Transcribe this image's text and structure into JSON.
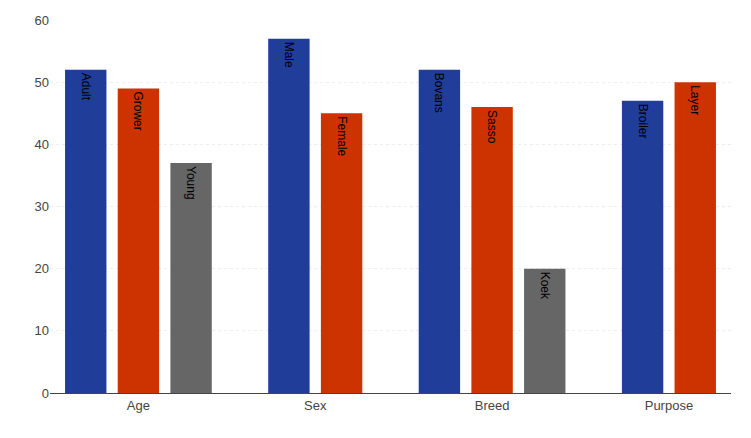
{
  "chart_data": {
    "type": "bar",
    "categories": [
      "Age",
      "Sex",
      "Breed",
      "Purpose"
    ],
    "series": [
      {
        "color": "#1f3d99",
        "values": [
          52,
          57,
          52,
          47
        ],
        "labels": [
          "Adult",
          "Male",
          "Bovans",
          "Broiler"
        ]
      },
      {
        "color": "#cc3300",
        "values": [
          49,
          45,
          46,
          50
        ],
        "labels": [
          "Grower",
          "Female",
          "Sasso",
          "Layer"
        ]
      },
      {
        "color": "#666666",
        "values": [
          37,
          null,
          20,
          null
        ],
        "labels": [
          "Young",
          null,
          "Koek",
          null
        ]
      }
    ],
    "ylim": [
      0,
      60
    ],
    "yticks": [
      0,
      10,
      20,
      30,
      40,
      50,
      60
    ],
    "grid": true
  }
}
